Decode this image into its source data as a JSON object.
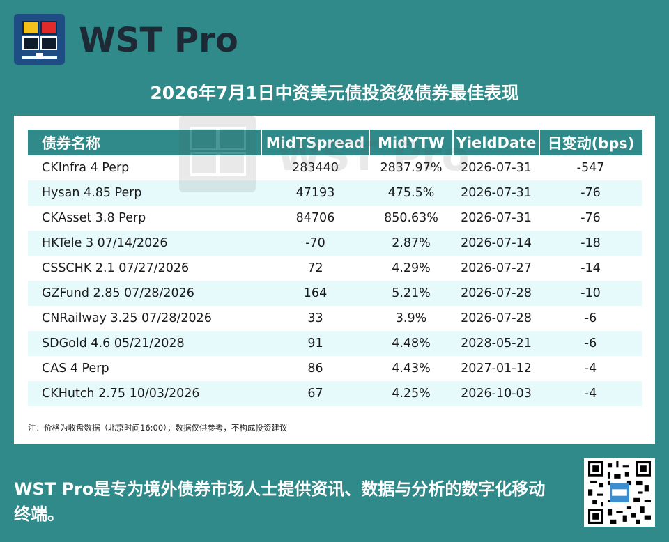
{
  "brand": {
    "name": "WST Pro",
    "watermark": "WST Pro"
  },
  "headline": "2026年7月1日中资美元债投资级债券最佳表现",
  "table": {
    "headers": [
      "债券名称",
      "MidTSpread",
      "MidYTW",
      "YieldDate",
      "日变动(bps)"
    ],
    "rows": [
      [
        "CKInfra 4 Perp",
        "283440",
        "2837.97%",
        "2026-07-31",
        "-547"
      ],
      [
        "Hysan 4.85 Perp",
        "47193",
        "475.5%",
        "2026-07-31",
        "-76"
      ],
      [
        "CKAsset 3.8 Perp",
        "84706",
        "850.63%",
        "2026-07-31",
        "-76"
      ],
      [
        "HKTele 3 07/14/2026",
        "-70",
        "2.87%",
        "2026-07-14",
        "-18"
      ],
      [
        "CSSCHK 2.1 07/27/2026",
        "72",
        "4.29%",
        "2026-07-27",
        "-14"
      ],
      [
        "GZFund 2.85 07/28/2026",
        "164",
        "5.21%",
        "2026-07-28",
        "-10"
      ],
      [
        "CNRailway 3.25 07/28/2026",
        "33",
        "3.9%",
        "2026-07-28",
        "-6"
      ],
      [
        "SDGold 4.6 05/21/2028",
        "91",
        "4.48%",
        "2028-05-21",
        "-6"
      ],
      [
        "CAS 4 Perp",
        "86",
        "4.43%",
        "2027-01-12",
        "-4"
      ],
      [
        "CKHutch 2.75 10/03/2026",
        "67",
        "4.25%",
        "2026-10-03",
        "-4"
      ]
    ]
  },
  "note": "注：价格为收盘数据（北京时间16:00）；数据仅供参考，不构成投资建议",
  "slogan": "WST Pro是专为境外债券市场人士提供资讯、数据与分析的数字化移动终端。",
  "colors": {
    "background": "#2f8a89",
    "header": "#2f8a89",
    "row_alt": "#e6fafc",
    "logo": "#1e4d84"
  }
}
